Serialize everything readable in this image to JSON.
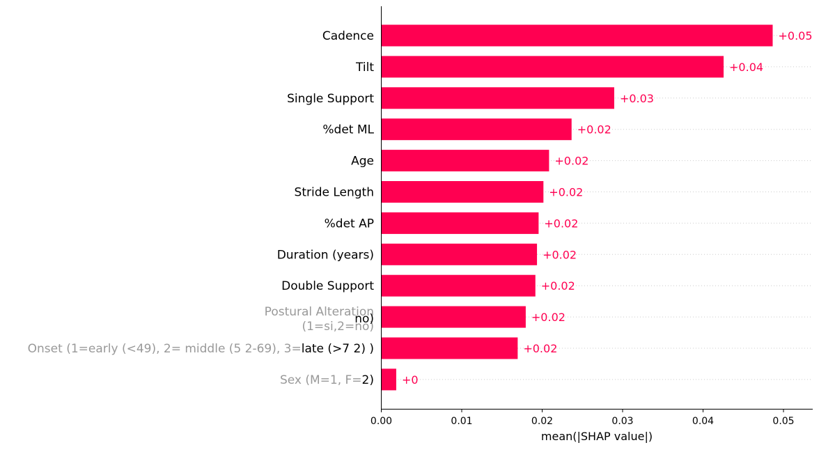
{
  "chart_data": {
    "type": "bar",
    "orientation": "horizontal",
    "bar_color": "#ff0051",
    "xlabel": "mean(|SHAP value|)",
    "xlim": [
      0,
      0.0535
    ],
    "xticks": [
      0.0,
      0.01,
      0.02,
      0.03,
      0.04,
      0.05
    ],
    "xtick_labels": [
      "0.00",
      "0.01",
      "0.02",
      "0.03",
      "0.04",
      "0.05"
    ],
    "grid": "dotted row guides",
    "bars": [
      {
        "category": "Cadence",
        "value": 0.0487,
        "value_label": "+0.05"
      },
      {
        "category": "Tilt",
        "value": 0.0426,
        "value_label": "+0.04"
      },
      {
        "category": "Single Support",
        "value": 0.029,
        "value_label": "+0.03"
      },
      {
        "category": "%det ML",
        "value": 0.0237,
        "value_label": "+0.02"
      },
      {
        "category": "Age",
        "value": 0.0209,
        "value_label": "+0.02"
      },
      {
        "category": "Stride Length",
        "value": 0.0202,
        "value_label": "+0.02"
      },
      {
        "category": "%det AP",
        "value": 0.0196,
        "value_label": "+0.02"
      },
      {
        "category": "Duration (years)",
        "value": 0.0194,
        "value_label": "+0.02"
      },
      {
        "category": "Double Support",
        "value": 0.0192,
        "value_label": "+0.02"
      },
      {
        "category": "Postural Alteration (1=si,2=no)",
        "label_lines_grey": [
          "Postural Alteration",
          "(1=si,2=no)"
        ],
        "label_overlay_black": "no)",
        "value": 0.018,
        "value_label": "+0.02"
      },
      {
        "category": "Onset (1=early (<49), 2= middle (5 2-69), 3=late (>7 2) )",
        "label_lines_grey": [
          "Onset (1=early (<49), 2= middle (5 2-69), 3="
        ],
        "label_overlay_black": "late (>7 2) )",
        "value": 0.017,
        "value_label": "+0.02"
      },
      {
        "category": "Sex (M=1, F=2)",
        "label_lines_grey": [
          "Sex (M=1, F="
        ],
        "label_overlay_black": "2)",
        "value": 0.0019,
        "value_label": "+0"
      }
    ]
  }
}
